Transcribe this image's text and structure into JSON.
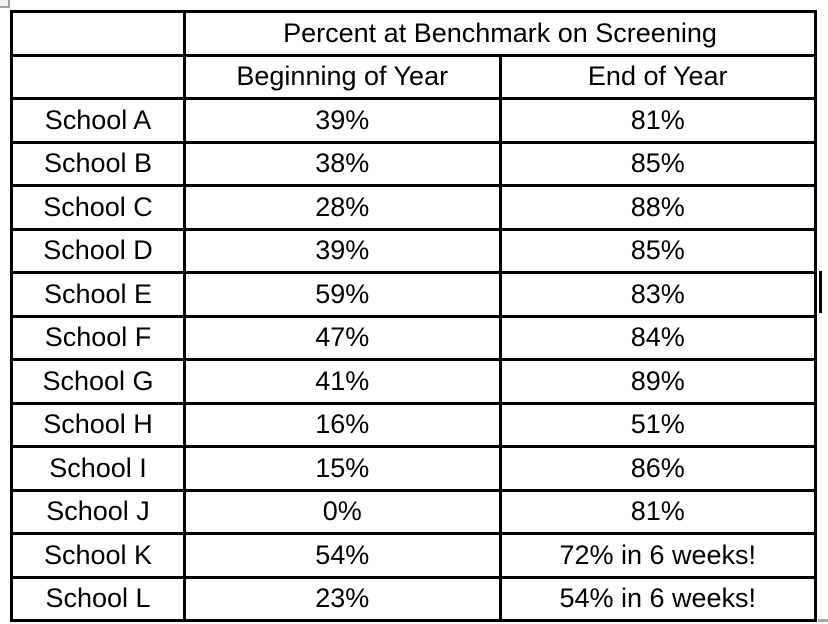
{
  "table": {
    "title": "Percent at Benchmark on Screening",
    "col_headers": [
      "Beginning of Year",
      "End of Year"
    ],
    "rows": [
      [
        "School A",
        "39%",
        "81%"
      ],
      [
        "School B",
        "38%",
        "85%"
      ],
      [
        "School C",
        "28%",
        "88%"
      ],
      [
        "School D",
        "39%",
        "85%"
      ],
      [
        "School E",
        "59%",
        "83%"
      ],
      [
        "School F",
        "47%",
        "84%"
      ],
      [
        "School G",
        "41%",
        "89%"
      ],
      [
        "School H",
        "16%",
        "51%"
      ],
      [
        "School I",
        "15%",
        "86%"
      ],
      [
        "School J",
        "0%",
        "81%"
      ],
      [
        "School K",
        "54%",
        "72% in 6 weeks!"
      ],
      [
        "School L",
        "23%",
        "54% in 6 weeks!"
      ]
    ],
    "border_color": "#000000",
    "text_color": "#000000"
  },
  "chart_data": {
    "type": "table",
    "title": "Percent at Benchmark on Screening",
    "categories": [
      "School A",
      "School B",
      "School C",
      "School D",
      "School E",
      "School F",
      "School G",
      "School H",
      "School I",
      "School J",
      "School K",
      "School L"
    ],
    "series": [
      {
        "name": "Beginning of Year",
        "values": [
          39,
          38,
          28,
          39,
          59,
          47,
          41,
          16,
          15,
          0,
          54,
          23
        ]
      },
      {
        "name": "End of Year",
        "values": [
          81,
          85,
          88,
          85,
          83,
          84,
          89,
          51,
          86,
          81,
          72,
          54
        ]
      }
    ],
    "annotations": [
      "School K End of Year: 72% in 6 weeks!",
      "School L End of Year: 54% in 6 weeks!"
    ]
  },
  "artifacts": {
    "handle_color": "#a3a3a3",
    "caret_color": "#000000",
    "edge_mark_color": "#a6a6a6"
  }
}
